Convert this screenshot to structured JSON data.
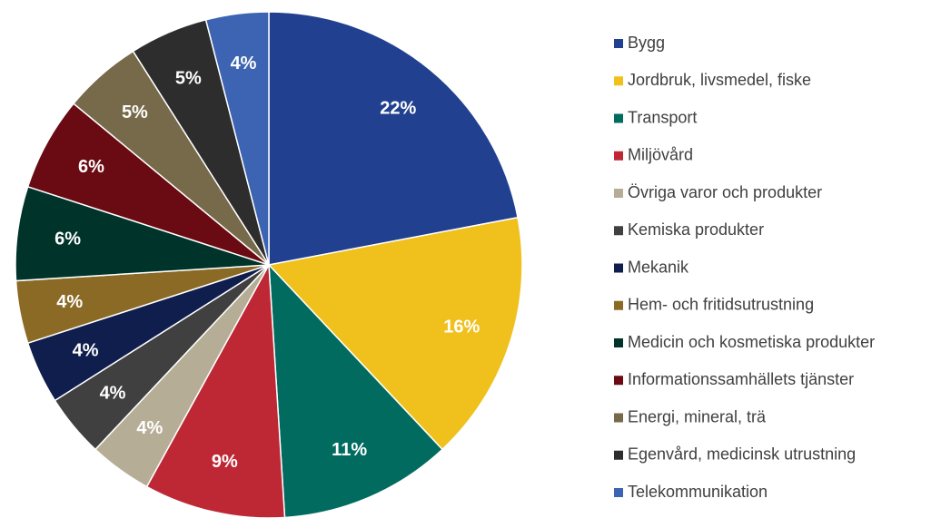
{
  "chart_data": {
    "type": "pie",
    "categories": [
      "Bygg",
      "Jordbruk, livsmedel, fiske",
      "Transport",
      "Miljövård",
      "Övriga varor och produkter",
      "Kemiska produkter",
      "Mekanik",
      "Hem- och fritidsutrustning",
      "Medicin och kosmetiska produkter",
      "Informationssamhällets tjänster",
      "Energi, mineral, trä",
      "Egenvård, medicinsk utrustning",
      "Telekommunikation"
    ],
    "values": [
      22,
      16,
      11,
      9,
      4,
      4,
      4,
      4,
      6,
      6,
      5,
      5,
      4
    ],
    "value_labels": [
      "22%",
      "16%",
      "11%",
      "9%",
      "4%",
      "4%",
      "4%",
      "4%",
      "6%",
      "6%",
      "5%",
      "5%",
      "4%"
    ],
    "colors": [
      "#21408f",
      "#f0c01c",
      "#006b5e",
      "#bd2834",
      "#b6ad96",
      "#404040",
      "#0f1e4c",
      "#8b6a26",
      "#00332a",
      "#6a0a12",
      "#766a4a",
      "#2d2d2d",
      "#3c64b2"
    ],
    "legend": "right"
  }
}
